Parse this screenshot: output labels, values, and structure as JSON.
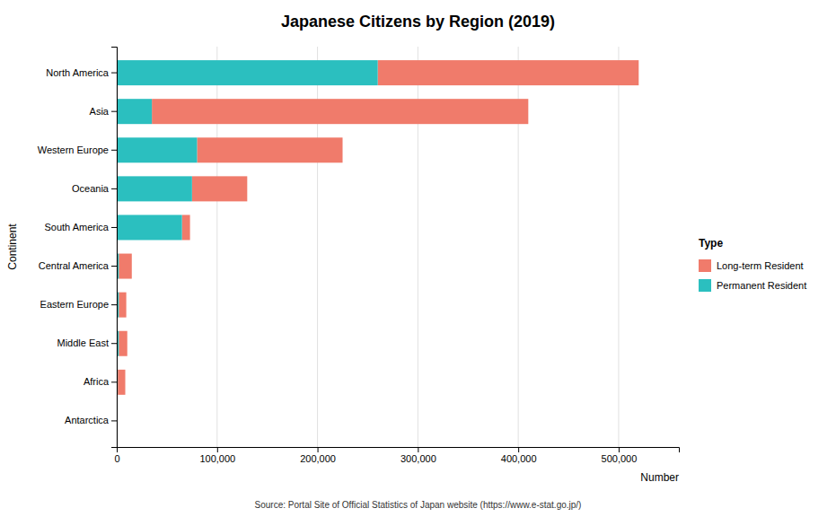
{
  "chart_data": {
    "type": "bar",
    "orientation": "horizontal",
    "stacked": true,
    "title": "Japanese Citizens by Region (2019)",
    "x_label": "Number",
    "y_label": "Continent",
    "categories": [
      "North America",
      "Asia",
      "Western Europe",
      "Oceania",
      "South America",
      "Central America",
      "Eastern Europe",
      "Middle East",
      "Africa",
      "Antarctica"
    ],
    "series": [
      {
        "name": "Long-term Resident",
        "color": "#F07B6B",
        "values": [
          260000,
          375000,
          145000,
          55000,
          8000,
          13000,
          7500,
          8500,
          7500,
          0
        ]
      },
      {
        "name": "Permanent Resident",
        "color": "#2BBFBF",
        "values": [
          260000,
          35000,
          80000,
          75000,
          65000,
          2000,
          2000,
          2000,
          1000,
          0
        ]
      }
    ],
    "xlim": [
      0,
      560000
    ],
    "xticks": [
      0,
      {
        "value": 100000,
        "label": "100,000"
      },
      {
        "value": 200000,
        "label": "200,000"
      },
      {
        "value": 300000,
        "label": "300,000"
      },
      {
        "value": 400000,
        "label": "400,000"
      },
      {
        "value": 500000,
        "label": "500,000"
      }
    ],
    "grid": true,
    "legend": "right",
    "legend_title": "Type",
    "annotations": [
      "Source: Portal Site of Official Statistics of Japan website (https://www.e-stat.go.jp/)"
    ]
  }
}
